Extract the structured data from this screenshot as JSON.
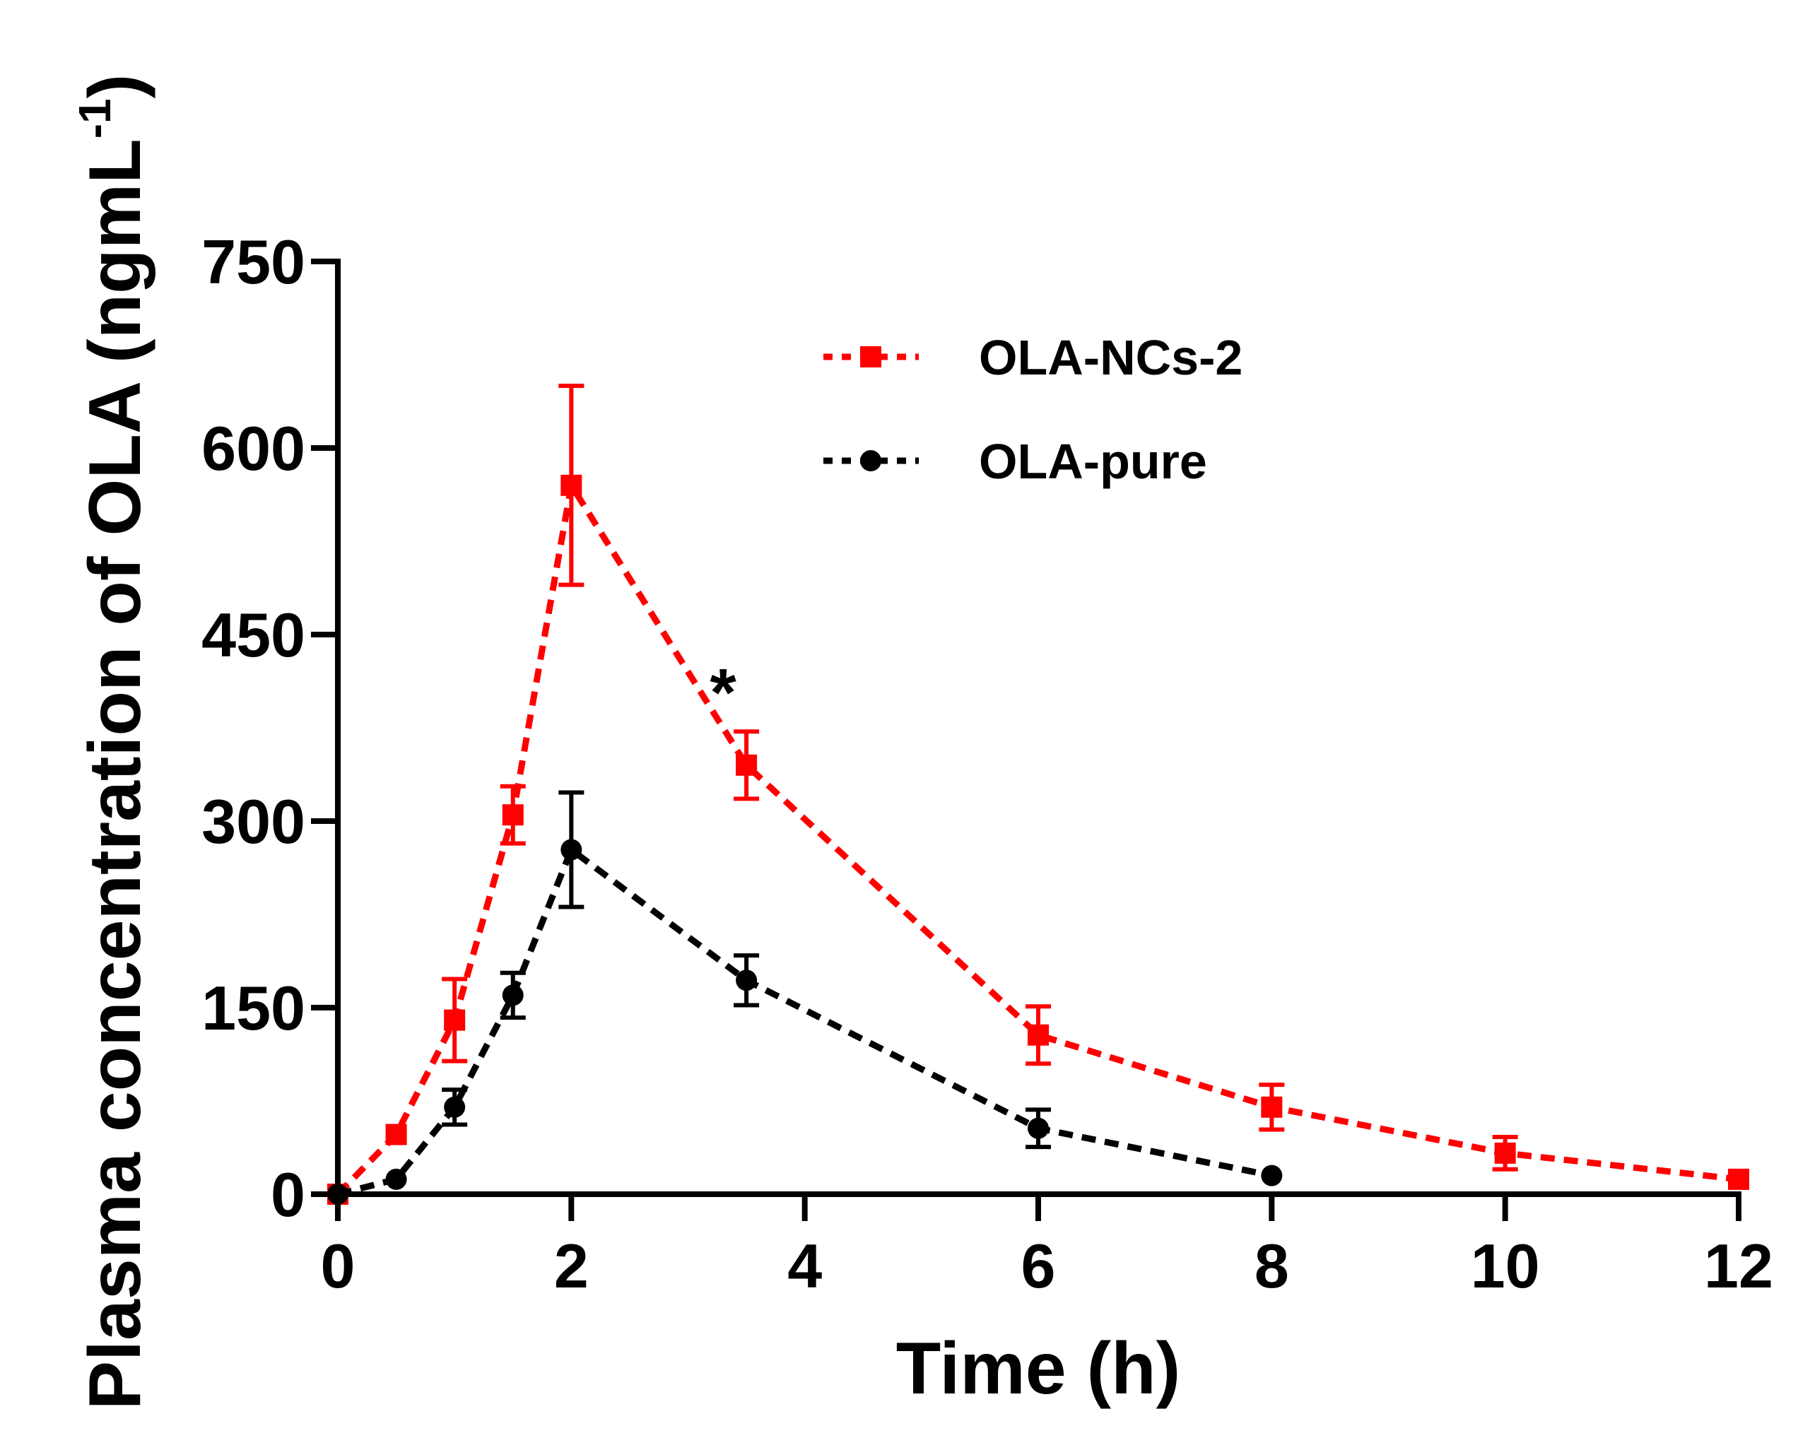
{
  "chart_data": {
    "type": "line",
    "title": "",
    "xlabel": "Time (h)",
    "ylabel": "Plasma concentration of OLA (ngmL",
    "ylabel_superscript": "-1",
    "ylabel_close": ")",
    "xlim": [
      0,
      12
    ],
    "ylim": [
      0,
      750
    ],
    "xticks": [
      0,
      2,
      4,
      6,
      8,
      10,
      12
    ],
    "yticks": [
      0,
      150,
      300,
      450,
      600,
      750
    ],
    "grid": false,
    "legend_position": "top-right",
    "series": [
      {
        "name": "OLA-NCs-2",
        "color": "#ff0000",
        "marker": "square",
        "line_style": "dashed",
        "x": [
          0,
          0.5,
          1,
          1.5,
          2,
          3.5,
          6,
          8,
          10,
          12
        ],
        "values": [
          0,
          48,
          140,
          305,
          570,
          345,
          128,
          70,
          33,
          12
        ],
        "errors": [
          0,
          0,
          33,
          23,
          80,
          27,
          23,
          18,
          13,
          0
        ]
      },
      {
        "name": "OLA-pure",
        "color": "#000000",
        "marker": "circle",
        "line_style": "dashed",
        "x": [
          0,
          0.5,
          1,
          1.5,
          2,
          3.5,
          6,
          8
        ],
        "values": [
          0,
          12,
          70,
          160,
          277,
          172,
          53,
          15
        ],
        "errors": [
          0,
          0,
          14,
          18,
          46,
          20,
          15,
          0
        ]
      }
    ],
    "annotations": [
      {
        "text": "*",
        "x": 3.3,
        "y": 420
      }
    ]
  }
}
